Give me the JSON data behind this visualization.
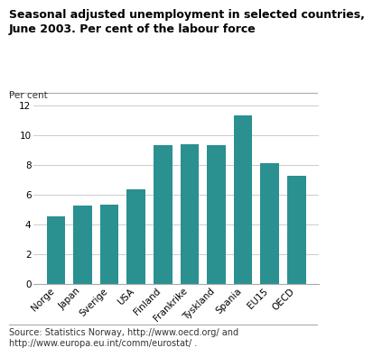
{
  "title": "Seasonal adjusted unemployment in selected countries,\nJune 2003. Per cent of the labour force",
  "ylabel": "Per cent",
  "categories": [
    "Norge",
    "Japan",
    "Sverige",
    "USA",
    "Finland",
    "Frankrike",
    "Tyskland",
    "Spania",
    "EU15",
    "OECD"
  ],
  "values": [
    4.55,
    5.25,
    5.35,
    6.35,
    9.3,
    9.4,
    9.35,
    11.3,
    8.1,
    7.25
  ],
  "bar_color": "#2a9090",
  "ylim": [
    0,
    12
  ],
  "yticks": [
    0,
    2,
    4,
    6,
    8,
    10,
    12
  ],
  "source_text": "Source: Statistics Norway, http://www.oecd.org/ and\nhttp://www.europa.eu.int/comm/eurostat/ .",
  "background_color": "#ffffff",
  "grid_color": "#cccccc",
  "title_fontsize": 9.0,
  "ylabel_fontsize": 7.5,
  "tick_fontsize": 7.5,
  "source_fontsize": 7.0
}
